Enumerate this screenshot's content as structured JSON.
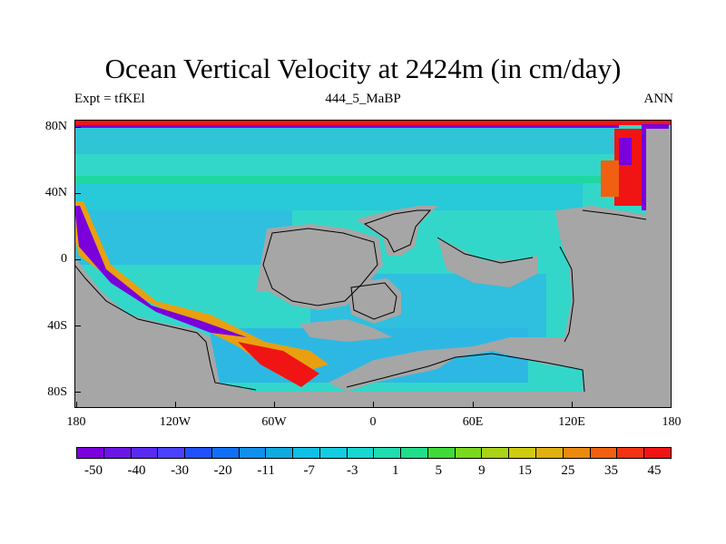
{
  "title": "Ocean Vertical Velocity at 2424m (in cm/day)",
  "subtitle_left": "Expt = tfKEl",
  "subtitle_center": "444_5_MaBP",
  "subtitle_right": "ANN",
  "colors": {
    "land": "#a6a6a6",
    "ocean_base": "#33ddcc",
    "coast_line": "#000000"
  },
  "map": {
    "projection": "cylindrical-equidistant",
    "lon_range": [
      -180,
      180
    ],
    "lat_range": [
      -90,
      85
    ],
    "y_axis_labels": [
      "80N",
      "40N",
      "0",
      "40S",
      "80S"
    ],
    "x_axis_labels": [
      "180",
      "120W",
      "60W",
      "0",
      "60E",
      "120E",
      "180"
    ]
  },
  "colorbar": {
    "colors": [
      "#7a00dc",
      "#6a17e6",
      "#5a2af0",
      "#4a40ff",
      "#2050ff",
      "#1070f5",
      "#1090ea",
      "#10a9e0",
      "#10bfe6",
      "#13cce0",
      "#18d6d0",
      "#20dcb0",
      "#22dd8a",
      "#3fda3a",
      "#7ad820",
      "#aad218",
      "#cfcb10",
      "#dfb010",
      "#ea8a10",
      "#f06010",
      "#f03414",
      "#f01414"
    ],
    "labels": [
      "-50",
      "-40",
      "-30",
      "-20",
      "-11",
      "-7",
      "-3",
      "1",
      "5",
      "9",
      "15",
      "25",
      "35",
      "45"
    ]
  }
}
